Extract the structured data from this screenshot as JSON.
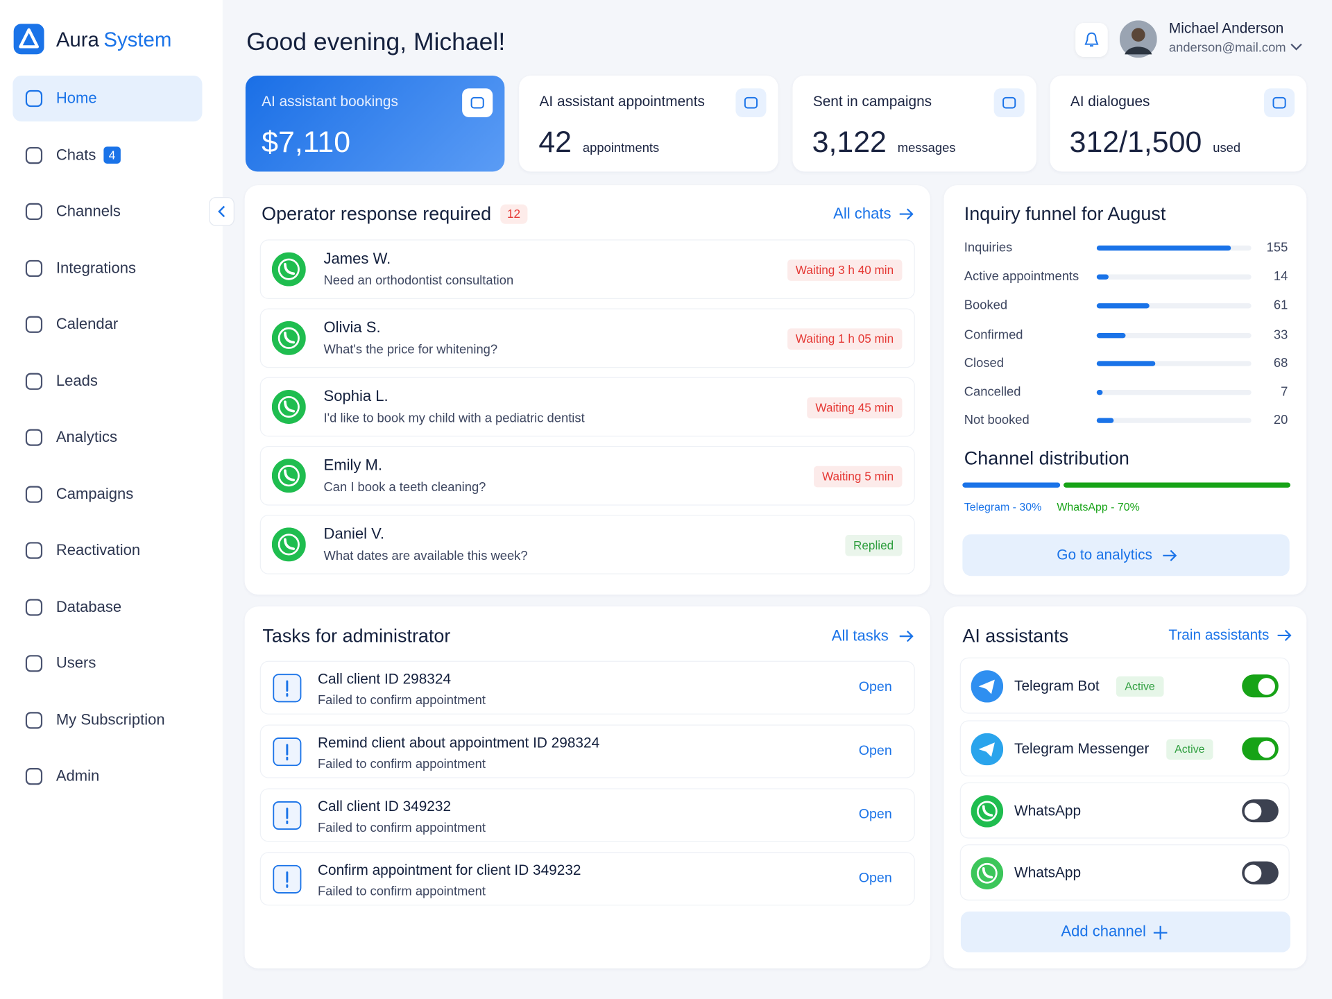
{
  "sidebar": {
    "brand": {
      "name": "Aura",
      "accent": "System"
    },
    "nav": [
      {
        "label": "Home",
        "active": true
      },
      {
        "label": "Chats",
        "badge": 4
      },
      {
        "label": "Channels"
      },
      {
        "label": "Integrations"
      },
      {
        "label": "Calendar"
      },
      {
        "label": "Leads"
      },
      {
        "label": "Analytics"
      },
      {
        "label": "Campaigns"
      },
      {
        "label": "Reactivation"
      },
      {
        "label": "Database"
      },
      {
        "label": "Users"
      },
      {
        "label": "My Subscription"
      },
      {
        "label": "Admin"
      }
    ]
  },
  "header": {
    "greeting": "Good evening, Michael!",
    "user": {
      "name": "Michael Anderson",
      "email": "anderson@mail.com"
    }
  },
  "stats": [
    {
      "title": "AI assistant bookings",
      "value": "$7,110"
    },
    {
      "title": "AI assistant appointments",
      "value": 42,
      "unit": "appointments"
    },
    {
      "title": "Sent in campaigns",
      "value": "3,122",
      "unit": "messages"
    },
    {
      "title": "AI dialogues",
      "value": "312/1,500",
      "unit": "used"
    }
  ],
  "operator": {
    "title": "Operator response required",
    "count": 12,
    "link": "All chats",
    "chats": [
      {
        "name": "James W.",
        "message": "Need an orthodontist consultation",
        "status": "Waiting 3 h 40 min",
        "color": "#e53935"
      },
      {
        "name": "Olivia S.",
        "message": "What's the price for whitening?",
        "status": "Waiting 1 h 05 min",
        "color": "#e53935"
      },
      {
        "name": "Sophia L.",
        "message": "I'd like to book my child with a pediatric dentist",
        "status": "Waiting 45 min",
        "color": "#e53935"
      },
      {
        "name": "Emily M.",
        "message": "Can I book a teeth cleaning?",
        "status": "Waiting 5 min",
        "color": "#e53935"
      },
      {
        "name": "Daniel V.",
        "message": "What dates are available this week?",
        "status": "Replied",
        "color": "#2e9e3e"
      }
    ]
  },
  "tasks": {
    "title": "Tasks for administrator",
    "link": "All tasks",
    "items": [
      {
        "title": "Call client ID 298324",
        "subtitle": "Failed to confirm appointment",
        "action": "Open"
      },
      {
        "title": "Remind client about appointment ID 298324",
        "subtitle": "Failed to confirm appointment",
        "action": "Open"
      },
      {
        "title": "Call client ID 349232",
        "subtitle": "Failed to confirm appointment",
        "action": "Open"
      },
      {
        "title": "Confirm appointment for client ID 349232",
        "subtitle": "Failed to confirm appointment",
        "action": "Open"
      }
    ]
  },
  "funnel": {
    "title": "Inquiry funnel for August",
    "color": "#1a73e8",
    "rows": [
      {
        "label": "Inquiries",
        "value": 155
      },
      {
        "label": "Active appointments",
        "value": 14
      },
      {
        "label": "Booked",
        "value": 61
      },
      {
        "label": "Confirmed",
        "value": 33
      },
      {
        "label": "Closed",
        "value": 68
      },
      {
        "label": "Cancelled",
        "value": 7
      },
      {
        "label": "Not booked",
        "value": 20
      }
    ]
  },
  "channels": {
    "title": "Channel distribution",
    "segments": [
      {
        "label": "Telegram - 30%",
        "value": 30,
        "color": "#1a73e8"
      },
      {
        "label": "WhatsApp - 70%",
        "value": 70,
        "color": "#17a317"
      }
    ],
    "button": "Go to analytics"
  },
  "assistants": {
    "title": "AI assistants",
    "link": "Train assistants",
    "items": [
      {
        "name": "Telegram Bot",
        "status": "Active",
        "enabled": true,
        "color": "#2f8ff0"
      },
      {
        "name": "Telegram Messenger",
        "status": "Active",
        "enabled": true,
        "color": "#2aa4ec"
      },
      {
        "name": "WhatsApp",
        "enabled": false,
        "color": "#1fbd4f"
      },
      {
        "name": "WhatsApp",
        "enabled": false,
        "color": "#3cc65a"
      }
    ],
    "button": "Add channel"
  }
}
